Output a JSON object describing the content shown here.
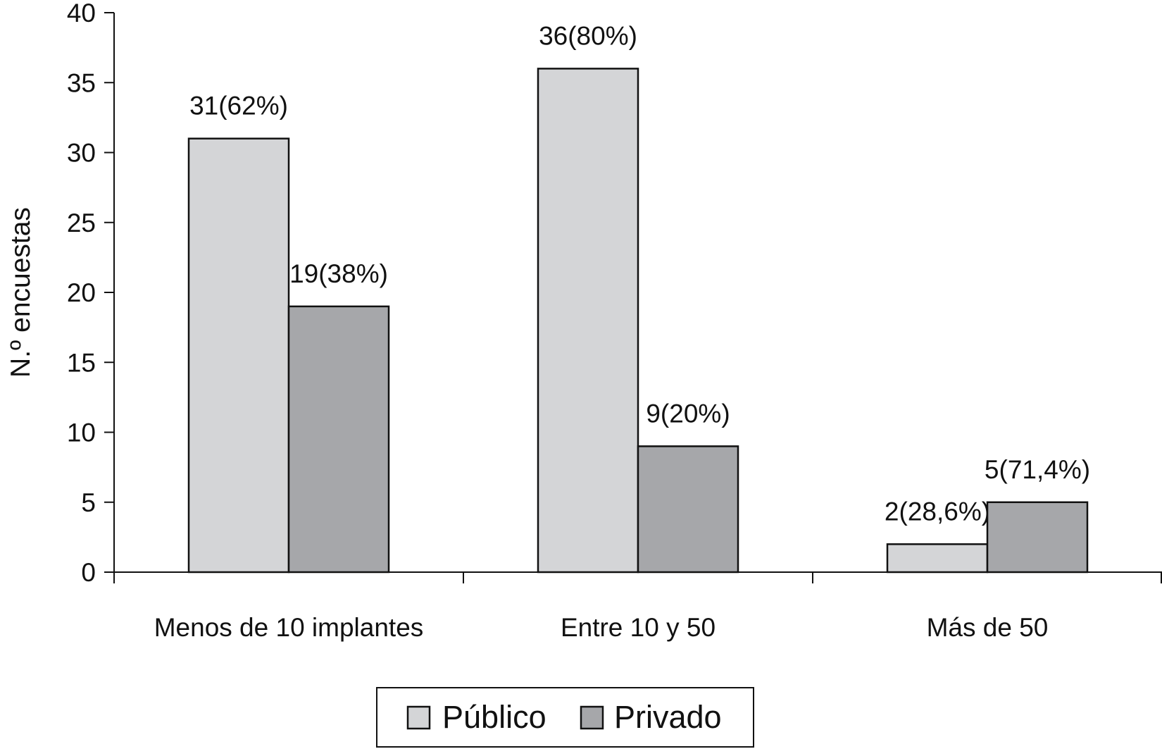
{
  "chart_data": {
    "type": "bar",
    "categories": [
      "Menos de 10 implantes",
      "Entre 10 y 50",
      "Más de 50"
    ],
    "series": [
      {
        "name": "Público",
        "values": [
          31,
          36,
          2
        ],
        "labels": [
          "31(62%)",
          "36(80%)",
          "2(28,6%)"
        ],
        "color": "#d4d5d7"
      },
      {
        "name": "Privado",
        "values": [
          19,
          9,
          5
        ],
        "labels": [
          "19(38%)",
          "9(20%)",
          "5(71,4%)"
        ],
        "color": "#a6a7aa"
      }
    ],
    "title": "",
    "xlabel": "",
    "ylabel": "N.º encuestas",
    "ylim": [
      0,
      40
    ],
    "yticks": [
      "0",
      "5",
      "10",
      "15",
      "20",
      "25",
      "30",
      "35",
      "40"
    ],
    "grid": false,
    "legend": "bottom-center"
  }
}
